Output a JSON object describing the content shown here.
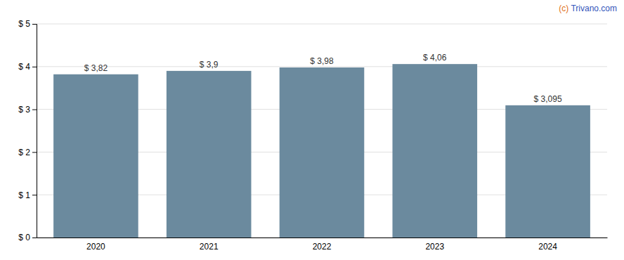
{
  "chart_data": {
    "type": "bar",
    "categories": [
      "2020",
      "2021",
      "2022",
      "2023",
      "2024"
    ],
    "values": [
      3.82,
      3.9,
      3.98,
      4.06,
      3.095
    ],
    "value_labels": [
      "$ 3,82",
      "$ 3,9",
      "$ 3,98",
      "$ 4,06",
      "$ 3,095"
    ],
    "color": "#6b8a9e",
    "ylim": [
      0,
      5
    ],
    "yticks": [
      {
        "value": 0,
        "label": "$ 0"
      },
      {
        "value": 1,
        "label": "$ 1"
      },
      {
        "value": 2,
        "label": "$ 2"
      },
      {
        "value": 3,
        "label": "$ 3"
      },
      {
        "value": 4,
        "label": "$ 4"
      },
      {
        "value": 5,
        "label": "$ 5"
      }
    ],
    "grid": true,
    "data_labels": true,
    "annotations": [
      {
        "text": "(c)",
        "color": "#e07020"
      },
      {
        "text": " Trivano.com",
        "color": "#3355bb"
      }
    ]
  }
}
